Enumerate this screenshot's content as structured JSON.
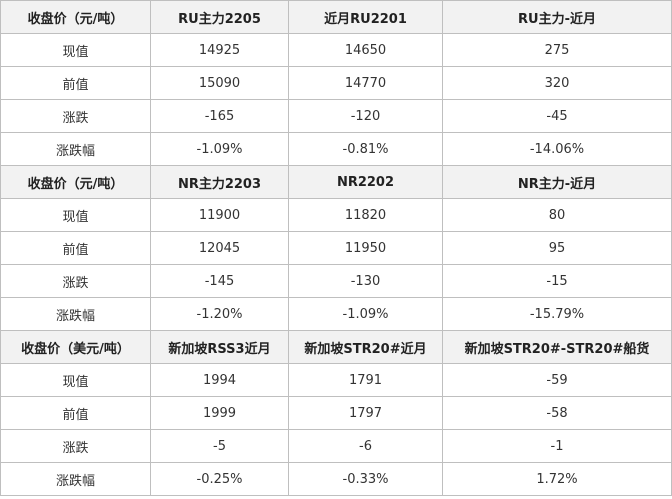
{
  "sections": [
    {
      "header": [
        "收盘价（元/吨）",
        "RU主力2205",
        "近月RU2201",
        "RU主力-近月"
      ],
      "rows": [
        [
          "现值",
          "14925",
          "14650",
          "275"
        ],
        [
          "前值",
          "15090",
          "14770",
          "320"
        ],
        [
          "涨跌",
          "-165",
          "-120",
          "-45"
        ],
        [
          "涨跌幅",
          "-1.09%",
          "-0.81%",
          "-14.06%"
        ]
      ]
    },
    {
      "header": [
        "收盘价（元/吨）",
        "NR主力2203",
        "NR2202",
        "NR主力-近月"
      ],
      "rows": [
        [
          "现值",
          "11900",
          "11820",
          "80"
        ],
        [
          "前值",
          "12045",
          "11950",
          "95"
        ],
        [
          "涨跌",
          "-145",
          "-130",
          "-15"
        ],
        [
          "涨跌幅",
          "-1.20%",
          "-1.09%",
          "-15.79%"
        ]
      ]
    },
    {
      "header": [
        "收盘价（美元/吨）",
        "新加坡RSS3近月",
        "新加坡STR20#近月",
        "新加坡STR20#-STR20#船货"
      ],
      "rows": [
        [
          "现值",
          "1994",
          "1791",
          "-59"
        ],
        [
          "前值",
          "1999",
          "1797",
          "-58"
        ],
        [
          "涨跌",
          "-5",
          "-6",
          "-1"
        ],
        [
          "涨跌幅",
          "-0.25%",
          "-0.33%",
          "1.72%"
        ]
      ]
    }
  ]
}
